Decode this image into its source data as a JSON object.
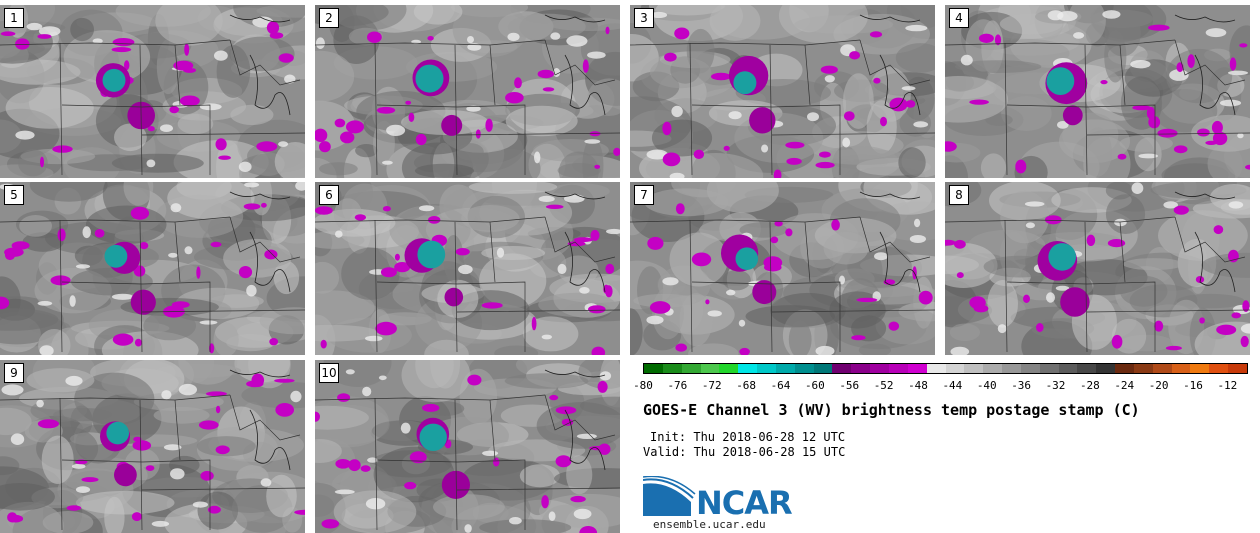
{
  "panels": [
    {
      "label": "1"
    },
    {
      "label": "2"
    },
    {
      "label": "3"
    },
    {
      "label": "4"
    },
    {
      "label": "5"
    },
    {
      "label": "6"
    },
    {
      "label": "7"
    },
    {
      "label": "8"
    },
    {
      "label": "9"
    },
    {
      "label": "10"
    }
  ],
  "colorbar": {
    "colors": [
      "#006b00",
      "#1a8c1a",
      "#33a833",
      "#4dc84d",
      "#22d62b",
      "#00e6e6",
      "#00c8c8",
      "#00aaaa",
      "#008f8f",
      "#007878",
      "#700070",
      "#8a008a",
      "#a000a0",
      "#b800b8",
      "#d000d0",
      "#e8e8e8",
      "#d4d4d4",
      "#c0c0c0",
      "#acacac",
      "#989898",
      "#848484",
      "#707070",
      "#5c5c5c",
      "#484848",
      "#343434",
      "#6b2a10",
      "#8a3a14",
      "#b04a18",
      "#d86018",
      "#f07a10",
      "#e05010",
      "#c83a0a"
    ],
    "tick_labels": [
      "-80",
      "-76",
      "-72",
      "-68",
      "-64",
      "-60",
      "-56",
      "-52",
      "-48",
      "-44",
      "-40",
      "-36",
      "-32",
      "-28",
      "-24",
      "-20",
      "-16",
      "-12"
    ]
  },
  "title": "GOES-E Channel 3 (WV) brightness temp postage stamp (C)",
  "init": "Init: Thu 2018-06-28 12 UTC",
  "valid": "Valid: Thu 2018-06-28 15 UTC",
  "logo": {
    "name": "ncar-logo",
    "text": "NCAR"
  },
  "site": "ensemble.ucar.edu"
}
